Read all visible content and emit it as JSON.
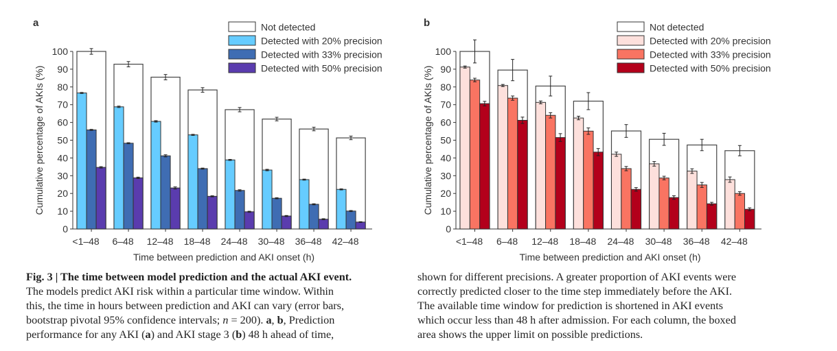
{
  "chart_data": [
    {
      "panel_label": "a",
      "type": "bar",
      "xlabel": "Time between prediction and AKI onset (h)",
      "ylabel": "Cumulative percentage of AKIs (%)",
      "ylim": [
        0,
        100
      ],
      "yticks": [
        0,
        10,
        20,
        30,
        40,
        50,
        60,
        70,
        80,
        90,
        100
      ],
      "categories": [
        "<1–48",
        "6–48",
        "12–48",
        "18–48",
        "24–48",
        "30–48",
        "36–48",
        "42–48"
      ],
      "legend_position": "top-right",
      "grid": false,
      "series": [
        {
          "name": "Not detected",
          "color": "#ffffff",
          "values": [
            100,
            92.8,
            85.5,
            78.3,
            67.2,
            61.9,
            56.3,
            51.3
          ],
          "error": [
            1.6,
            1.5,
            1.5,
            1.3,
            1.2,
            1.0,
            1.0,
            1.0
          ]
        },
        {
          "name": "Detected with 20% precision",
          "color": "#66ccff",
          "values": [
            76.6,
            68.8,
            60.6,
            53.0,
            38.9,
            33.2,
            27.8,
            22.3
          ],
          "error": [
            0.3,
            0.4,
            0.4,
            0.3,
            0.3,
            0.4,
            0.3,
            0.3
          ]
        },
        {
          "name": "Detected with 33% precision",
          "color": "#3f6db3",
          "values": [
            55.8,
            48.3,
            41.2,
            34.0,
            21.7,
            17.3,
            13.9,
            10.1
          ],
          "error": [
            0.3,
            0.3,
            0.6,
            0.3,
            0.4,
            0.3,
            0.3,
            0.3
          ]
        },
        {
          "name": "Detected with 50% precision",
          "color": "#5a3cae",
          "values": [
            34.7,
            28.8,
            23.1,
            18.4,
            9.7,
            7.3,
            5.5,
            3.9
          ],
          "error": [
            0.4,
            0.4,
            0.6,
            0.3,
            0.3,
            0.3,
            0.3,
            0.2
          ]
        }
      ]
    },
    {
      "panel_label": "b",
      "type": "bar",
      "xlabel": "Time between prediction and AKI onset (h)",
      "ylabel": "Cumulative percentage of AKIs (%)",
      "ylim": [
        0,
        100
      ],
      "yticks": [
        0,
        10,
        20,
        30,
        40,
        50,
        60,
        70,
        80,
        90,
        100
      ],
      "categories": [
        "<1–48",
        "6–48",
        "12–48",
        "18–48",
        "24–48",
        "30–48",
        "36–48",
        "42–48"
      ],
      "legend_position": "top-right",
      "grid": false,
      "series": [
        {
          "name": "Not detected",
          "color": "#ffffff",
          "values": [
            100,
            89.5,
            80.5,
            72.0,
            55.2,
            50.5,
            47.3,
            44.1
          ],
          "error": [
            6.5,
            6.0,
            5.6,
            4.8,
            3.6,
            3.4,
            3.2,
            2.9
          ]
        },
        {
          "name": "Detected with 20% precision",
          "color": "#fde0dc",
          "values": [
            91.2,
            80.8,
            71.3,
            62.5,
            42.1,
            36.7,
            32.6,
            27.8
          ],
          "error": [
            0.6,
            0.6,
            0.8,
            1.0,
            1.2,
            1.3,
            1.3,
            1.5
          ]
        },
        {
          "name": "Detected with 33% precision",
          "color": "#f97462",
          "values": [
            83.9,
            73.7,
            64.0,
            55.1,
            34.0,
            28.7,
            24.8,
            20.0
          ],
          "error": [
            1.0,
            1.2,
            1.5,
            1.8,
            1.2,
            1.0,
            1.4,
            1.0
          ]
        },
        {
          "name": "Detected with 50% precision",
          "color": "#b3001b",
          "values": [
            70.6,
            61.2,
            51.5,
            43.3,
            22.3,
            17.7,
            14.2,
            11.1
          ],
          "error": [
            1.3,
            1.8,
            2.2,
            2.0,
            1.0,
            1.0,
            0.8,
            0.8
          ]
        }
      ]
    }
  ],
  "caption": {
    "left": [
      [
        {
          "t": "Fig. 3 | The time between model prediction and the actual AKI event.",
          "b": true
        }
      ],
      [
        {
          "t": "The models predict AKI risk within a particular time window. Within"
        }
      ],
      [
        {
          "t": "this, the time in hours between prediction and AKI can vary (error bars,"
        }
      ],
      [
        {
          "t": "bootstrap pivotal 95% confidence intervals; "
        },
        {
          "t": "n",
          "i": true
        },
        {
          "t": " = 200). "
        },
        {
          "t": "a",
          "b": true
        },
        {
          "t": ", "
        },
        {
          "t": "b",
          "b": true
        },
        {
          "t": ", Prediction"
        }
      ],
      [
        {
          "t": "performance for any AKI ("
        },
        {
          "t": "a",
          "b": true
        },
        {
          "t": ") and AKI stage 3 ("
        },
        {
          "t": "b",
          "b": true
        },
        {
          "t": ") 48 h ahead of time,"
        }
      ]
    ],
    "right": [
      [
        {
          "t": "shown for different precisions. A greater proportion of AKI events were"
        }
      ],
      [
        {
          "t": "correctly predicted closer to the time step immediately before the AKI."
        }
      ],
      [
        {
          "t": "The available time window for prediction is shortened in AKI events"
        }
      ],
      [
        {
          "t": "which occur less than 48 h after admission. For each column, the boxed"
        }
      ],
      [
        {
          "t": "area shows the upper limit on possible predictions."
        }
      ]
    ]
  }
}
